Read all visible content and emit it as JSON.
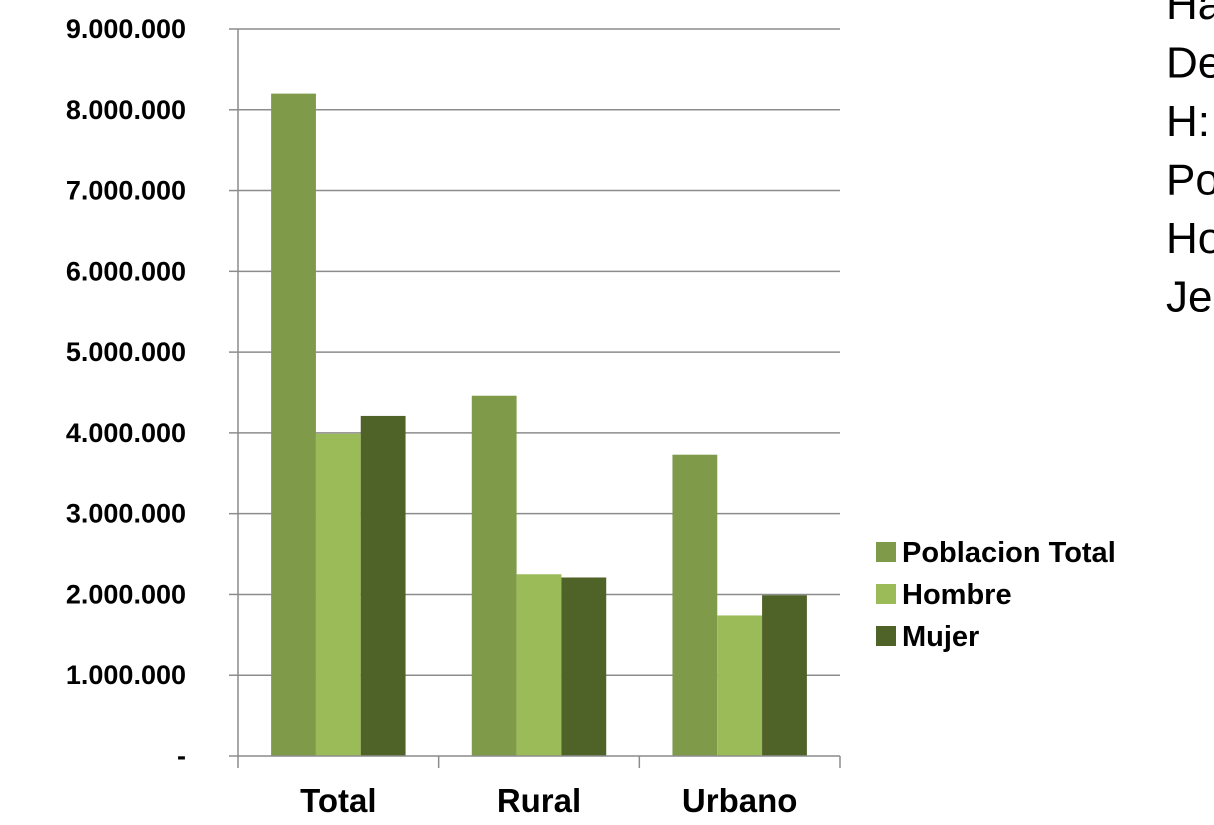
{
  "chart_data": {
    "type": "bar",
    "categories": [
      "Total",
      "Rural",
      "Urbano"
    ],
    "series": [
      {
        "name": "Poblacion Total",
        "color": "#7f9a48",
        "values": [
          8200000,
          4460000,
          3730000
        ]
      },
      {
        "name": "Hombre",
        "color": "#9bbb59",
        "values": [
          3990000,
          2250000,
          1740000
        ]
      },
      {
        "name": "Mujer",
        "color": "#4f6228",
        "values": [
          4210000,
          2210000,
          1990000
        ]
      }
    ],
    "ylim": [
      0,
      9000000
    ],
    "yticks": [
      {
        "value": 0,
        "label": "-"
      },
      {
        "value": 1000000,
        "label": "1.000.000"
      },
      {
        "value": 2000000,
        "label": "2.000.000"
      },
      {
        "value": 3000000,
        "label": "3.000.000"
      },
      {
        "value": 4000000,
        "label": "4.000.000"
      },
      {
        "value": 5000000,
        "label": "5.000.000"
      },
      {
        "value": 6000000,
        "label": "6.000.000"
      },
      {
        "value": 7000000,
        "label": "7.000.000"
      },
      {
        "value": 8000000,
        "label": "8.000.000"
      },
      {
        "value": 9000000,
        "label": "9.000.000"
      }
    ],
    "grid": true,
    "legend": "right"
  },
  "side_text": [
    "Ha",
    "De",
    "H:",
    "Po",
    "Ho",
    "Je"
  ]
}
